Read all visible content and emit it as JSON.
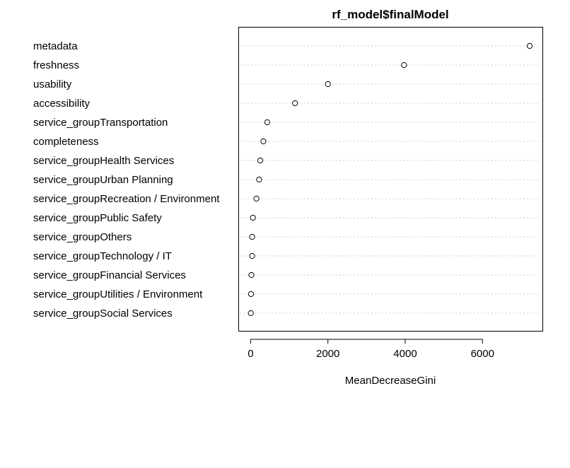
{
  "chart_data": {
    "type": "scatter",
    "title": "rf_model$finalModel",
    "xlabel": "MeanDecreaseGini",
    "ylabel": "",
    "xlim": [
      -300,
      7550
    ],
    "xticks": [
      0,
      2000,
      4000,
      6000
    ],
    "xtick_labels": [
      "0",
      "2000",
      "4000",
      "6000"
    ],
    "grid": "dotted horizontal guide per variable",
    "legend": "none",
    "point_style": "open circle",
    "categories": [
      "metadata",
      "freshness",
      "usability",
      "accessibility",
      "service_groupTransportation",
      "completeness",
      "service_groupHealth Services",
      "service_groupUrban Planning",
      "service_groupRecreation / Environment",
      "service_groupPublic Safety",
      "service_groupOthers",
      "service_groupTechnology / IT",
      "service_groupFinancial Services",
      "service_groupUtilities / Environment",
      "service_groupSocial Services"
    ],
    "values": [
      7220,
      3970,
      2000,
      1150,
      430,
      330,
      250,
      220,
      150,
      60,
      40,
      40,
      20,
      10,
      5
    ]
  }
}
